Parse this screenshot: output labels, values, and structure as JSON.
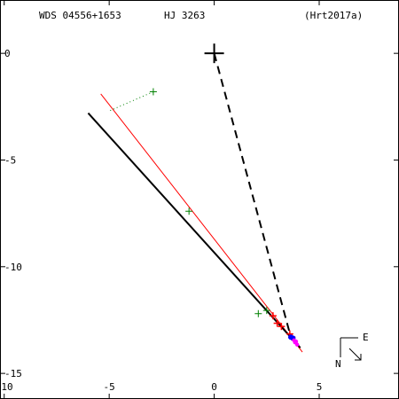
{
  "chart_data": {
    "type": "scatter",
    "title": "WDS 04556+1653",
    "subtitle": "HJ 3263",
    "reference": "(Hrt2017a)",
    "x_ticks": [
      {
        "value": -10,
        "label": "-10"
      },
      {
        "value": -5,
        "label": "-5"
      },
      {
        "value": 0,
        "label": "0"
      },
      {
        "value": 5,
        "label": "5"
      }
    ],
    "y_ticks": [
      {
        "value": 0,
        "label": "0"
      },
      {
        "value": -5,
        "label": "-5"
      },
      {
        "value": -10,
        "label": "-10"
      },
      {
        "value": -15,
        "label": "-15"
      }
    ],
    "xlim": [
      -10.2,
      8.8
    ],
    "ylim": [
      -16.2,
      2.5
    ],
    "primary": [
      0,
      0
    ],
    "orbit_line": [
      [
        -6.0,
        -2.8
      ],
      [
        4.1,
        -13.8
      ]
    ],
    "red_line": [
      [
        -5.4,
        -1.9
      ],
      [
        4.2,
        -14.0
      ]
    ],
    "dashed_line": [
      [
        0,
        0
      ],
      [
        3.65,
        -13.3
      ]
    ],
    "green_points": [
      [
        -2.9,
        -1.8
      ],
      [
        -1.2,
        -7.4
      ],
      [
        2.1,
        -12.2
      ],
      [
        2.5,
        -12.05
      ]
    ],
    "green_residuals": [
      [
        [
          -2.9,
          -1.8
        ],
        [
          -5.0,
          -2.7
        ]
      ]
    ],
    "red_points": [
      [
        2.8,
        -12.3
      ],
      [
        3.0,
        -12.65
      ],
      [
        3.2,
        -12.8
      ],
      [
        3.6,
        -13.15
      ],
      [
        3.7,
        -13.3
      ]
    ],
    "blue_points": [
      [
        3.65,
        -13.3
      ],
      [
        3.75,
        -13.35
      ]
    ],
    "magenta_points": [
      [
        3.8,
        -13.45
      ],
      [
        3.85,
        -13.55
      ],
      [
        3.95,
        -13.65
      ],
      [
        3.9,
        -13.5
      ]
    ],
    "compass": {
      "east_label": "E",
      "north_label": "N"
    },
    "colors": {
      "orbit": "#000000",
      "red": "#ff0000",
      "green": "#008000",
      "blue": "#0000ff",
      "magenta": "#ff00ff"
    }
  }
}
